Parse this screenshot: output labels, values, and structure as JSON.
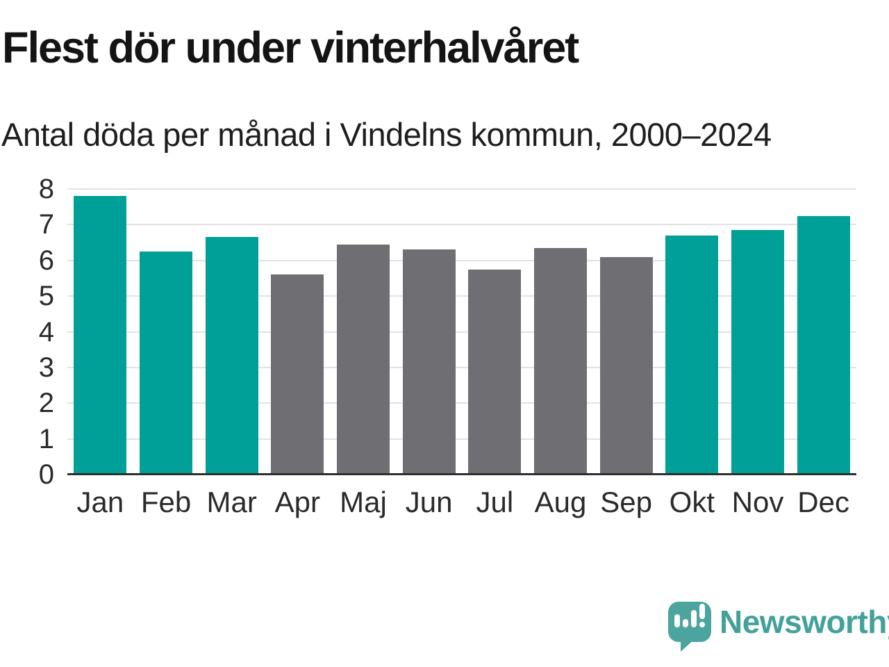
{
  "header": {
    "title": "Flest dör under vinterhalvåret",
    "subtitle": "Antal döda per månad i Vindelns kommun, 2000–2024"
  },
  "branding": {
    "logo_text": "Newsworthy",
    "logo_icon": "speech-bubble-bar-chart-exclamation",
    "logo_color": "#4ba49d",
    "logo_text_color": "#42a19a"
  },
  "colors": {
    "winter_bar": "#00a099",
    "summer_bar": "#6e6e73",
    "gridline": "#e2e2e2",
    "axis_line": "#2e2e2e",
    "text": "#1e1e1e"
  },
  "chart_data": {
    "type": "bar",
    "title": "Flest dör under vinterhalvåret",
    "subtitle": "Antal döda per månad i Vindelns kommun, 2000–2024",
    "categories": [
      "Jan",
      "Feb",
      "Mar",
      "Apr",
      "Maj",
      "Jun",
      "Jul",
      "Aug",
      "Sep",
      "Okt",
      "Nov",
      "Dec"
    ],
    "values": [
      7.8,
      6.25,
      6.65,
      5.6,
      6.45,
      6.3,
      5.75,
      6.35,
      6.1,
      6.7,
      6.85,
      7.25
    ],
    "bar_colors": [
      "#00a099",
      "#00a099",
      "#00a099",
      "#6e6e73",
      "#6e6e73",
      "#6e6e73",
      "#6e6e73",
      "#6e6e73",
      "#6e6e73",
      "#00a099",
      "#00a099",
      "#00a099"
    ],
    "xlabel": "",
    "ylabel": "",
    "ylim": [
      0,
      8
    ],
    "yticks": [
      0,
      1,
      2,
      3,
      4,
      5,
      6,
      7,
      8
    ],
    "grid": true,
    "legend": "none"
  }
}
